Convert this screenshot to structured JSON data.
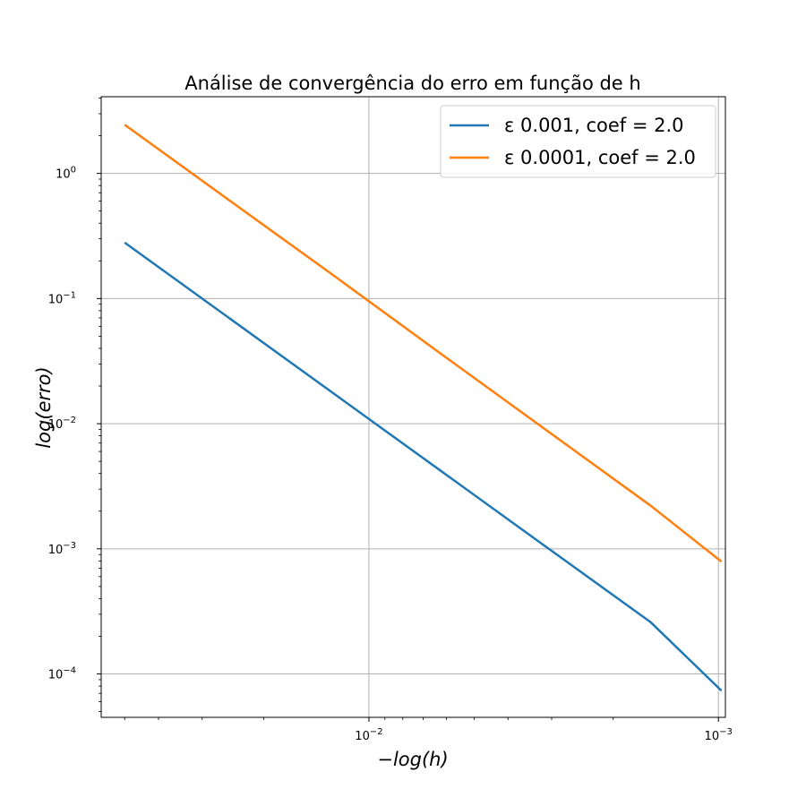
{
  "chart_data": {
    "type": "line",
    "title": "Análise de convergência do erro em função de h",
    "xlabel": "−log(h)",
    "ylabel": "log(erro)",
    "xscale": "log",
    "yscale": "log",
    "x_inverted": true,
    "xlim": [
      0.05835,
      0.000955
    ],
    "ylim": [
      4.5e-05,
      4.1
    ],
    "grid": true,
    "legend_position": "top-right",
    "x_ticks": [
      {
        "value": 0.01,
        "label": "10",
        "exp": "−2"
      },
      {
        "value": 0.001,
        "label": "10",
        "exp": "−3"
      }
    ],
    "y_ticks": [
      {
        "value": 1,
        "label": "10",
        "exp": "0"
      },
      {
        "value": 0.1,
        "label": "10",
        "exp": "−1"
      },
      {
        "value": 0.01,
        "label": "10",
        "exp": "−2"
      },
      {
        "value": 0.001,
        "label": "10",
        "exp": "−3"
      },
      {
        "value": 0.0001,
        "label": "10",
        "exp": "−4"
      }
    ],
    "x": [
      0.05,
      0.025,
      0.0125,
      0.00625,
      0.003125,
      0.0015625,
      0.00098
    ],
    "series": [
      {
        "name": "ε 0.001, coef = 2.0",
        "color": "#1f77b4",
        "values": [
          0.28,
          0.0692,
          0.0171,
          0.00423,
          0.001046,
          0.000259,
          7.35e-05
        ]
      },
      {
        "name": "ε 0.0001, coef = 2.0",
        "color": "#ff7f0e",
        "values": [
          2.45,
          0.605,
          0.15,
          0.0365,
          0.00898,
          0.00221,
          0.00079
        ]
      }
    ]
  }
}
